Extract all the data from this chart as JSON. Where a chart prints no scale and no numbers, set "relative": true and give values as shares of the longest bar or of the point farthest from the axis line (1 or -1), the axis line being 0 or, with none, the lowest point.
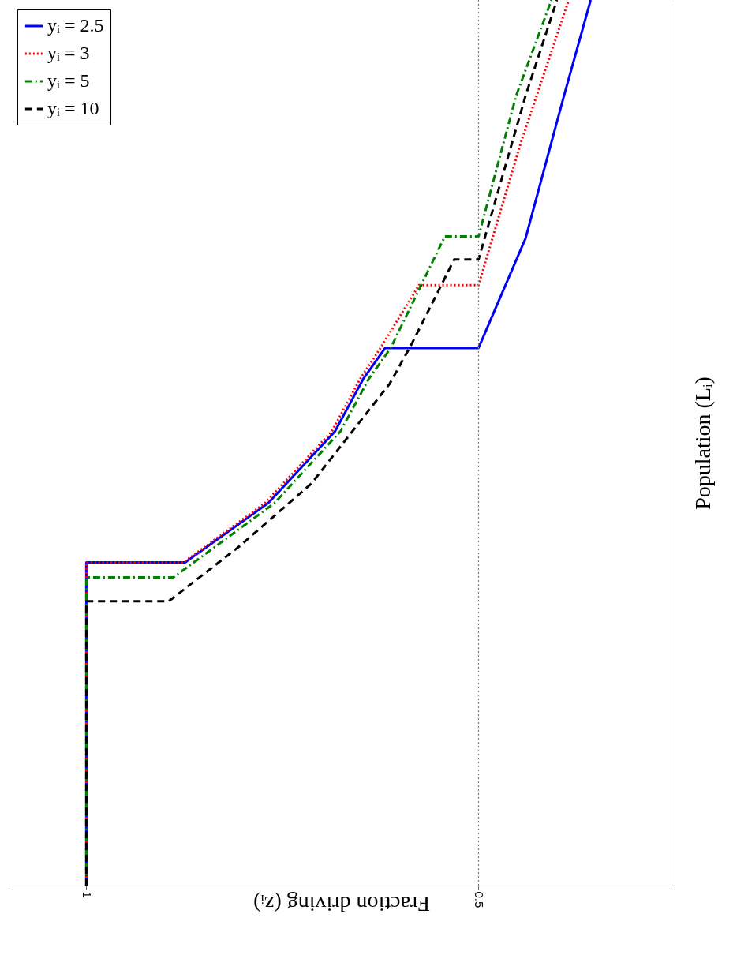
{
  "chart_data": {
    "type": "line",
    "relative": true,
    "xlabel": "Fraction driving (zᵢ)",
    "ylabel": "Population (Lᵢ)",
    "xlim": [
      1.1,
      0.25
    ],
    "xticks": [
      1,
      0.5
    ],
    "tick_labels": "x",
    "grid": false,
    "legend": "top left",
    "ref_lines": [
      {
        "axis": "x",
        "value": 0.5,
        "color": "#808080",
        "line_style": "dotted"
      }
    ],
    "series": [
      {
        "name": "yᵢ = 2.5",
        "color": "#0000ff",
        "line_style": "solid",
        "x": [
          1,
          1,
          0.874,
          0.768,
          0.683,
          0.647,
          0.619,
          0.5,
          0.44,
          0.391,
          0.357
        ],
        "values": [
          0,
          0.365,
          0.365,
          0.432,
          0.513,
          0.572,
          0.607,
          0.607,
          0.731,
          0.892,
          1
        ]
      },
      {
        "name": "yᵢ = 3",
        "color": "#ff0000",
        "line_style": "dotted",
        "x": [
          1,
          1,
          0.876,
          0.772,
          0.687,
          0.651,
          0.625,
          0.576,
          0.5,
          0.446,
          0.385
        ],
        "values": [
          0,
          0.365,
          0.365,
          0.432,
          0.513,
          0.572,
          0.607,
          0.678,
          0.678,
          0.839,
          1
        ]
      },
      {
        "name": "yᵢ = 5",
        "color": "#008000",
        "line_style": "dashdot",
        "x": [
          1,
          1,
          0.889,
          0.76,
          0.676,
          0.64,
          0.612,
          0.543,
          0.5,
          0.452,
          0.407
        ],
        "values": [
          0,
          0.348,
          0.348,
          0.432,
          0.513,
          0.572,
          0.607,
          0.733,
          0.733,
          0.892,
          1
        ]
      },
      {
        "name": "yᵢ = 10",
        "color": "#000000",
        "line_style": "dashed",
        "x": [
          1,
          1,
          0.895,
          0.805,
          0.713,
          0.613,
          0.585,
          0.531,
          0.5,
          0.44,
          0.4
        ],
        "values": [
          0,
          0.321,
          0.321,
          0.383,
          0.454,
          0.567,
          0.612,
          0.707,
          0.707,
          0.892,
          1
        ]
      }
    ]
  }
}
